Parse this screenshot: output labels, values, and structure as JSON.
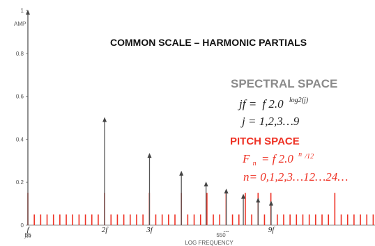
{
  "chart_data": {
    "type": "stem",
    "title": "COMMON SCALE – HARMONIC PARTIALS",
    "ylabel": "AMP",
    "xlabel": "LOG FREQUENCY",
    "ylim": [
      0,
      1
    ],
    "yticks": [
      "0",
      "0.2",
      "0.4",
      "0.6",
      "0.8",
      "1"
    ],
    "xtick_labels": {
      "left": "55",
      "mid": "550"
    },
    "log_freq_range": [
      55,
      1265
    ],
    "fundamental": 55,
    "harmonic_partials": {
      "color": "#555555",
      "j": [
        1,
        2,
        3,
        4,
        5,
        6,
        7,
        8,
        9
      ],
      "amplitude": [
        1.0,
        0.5,
        0.333,
        0.25,
        0.2,
        0.167,
        0.143,
        0.125,
        0.111
      ]
    },
    "pitch_space_partials": {
      "color": "#ee3124",
      "n_range": [
        0,
        62
      ],
      "amplitude": 0.05,
      "accent_amplitude": 0.1,
      "accent_every": 12,
      "aligned_amplitude": 0.15,
      "aligned_n": [
        0,
        12,
        19,
        24,
        28,
        31,
        34,
        36,
        38,
        48,
        55
      ]
    },
    "harmonic_labels": [
      {
        "j": 1,
        "text": "f",
        "sub": "j10"
      },
      {
        "j": 2,
        "text": "2f"
      },
      {
        "j": 3,
        "text": "3f"
      },
      {
        "j": 6,
        "text": "..."
      },
      {
        "j": 9,
        "text": "9f"
      }
    ]
  },
  "annotations": {
    "spectral_space": {
      "heading": "SPECTRAL SPACE",
      "formula_lhs": "jf =",
      "formula_main": "f 2.0",
      "formula_exp": "log2(j)",
      "formula_range": "j  = 1,2,3…9"
    },
    "pitch_space": {
      "heading": "PITCH SPACE",
      "formula_lhs": "F",
      "formula_lhs_sub": "n",
      "formula_main": "= f 2.0",
      "formula_exp": "n",
      "formula_exp_tail": "/12",
      "formula_range": "n= 0,1,2,3…12…24…"
    }
  },
  "colors": {
    "harmonic": "#555555",
    "pitch": "#ee3124",
    "axis": "#555555"
  }
}
